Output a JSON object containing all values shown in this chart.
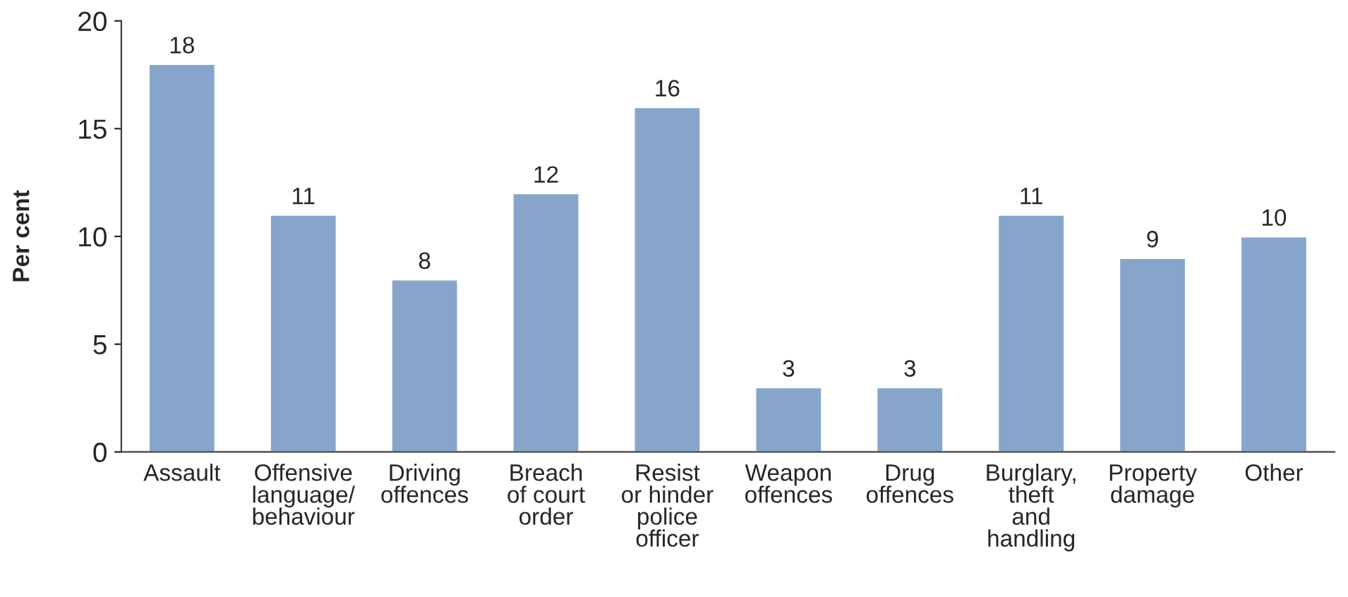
{
  "chart_data": {
    "type": "bar",
    "ylabel": "Per cent",
    "categories": [
      "Assault",
      "Offensive\nlanguage/\nbehaviour",
      "Driving\noffences",
      "Breach\nof court\norder",
      "Resist\nor hinder\npolice\nofficer",
      "Weapon\noffences",
      "Drug\noffences",
      "Burglary,\ntheft\nand\nhandling",
      "Property\ndamage",
      "Other"
    ],
    "values": [
      18,
      11,
      8,
      12,
      16,
      3,
      3,
      11,
      9,
      10
    ],
    "color": "#87a5cb",
    "ylim": [
      0,
      20
    ],
    "yticks": [
      0,
      5,
      10,
      15,
      20
    ],
    "grid": false,
    "data_labels": true
  }
}
